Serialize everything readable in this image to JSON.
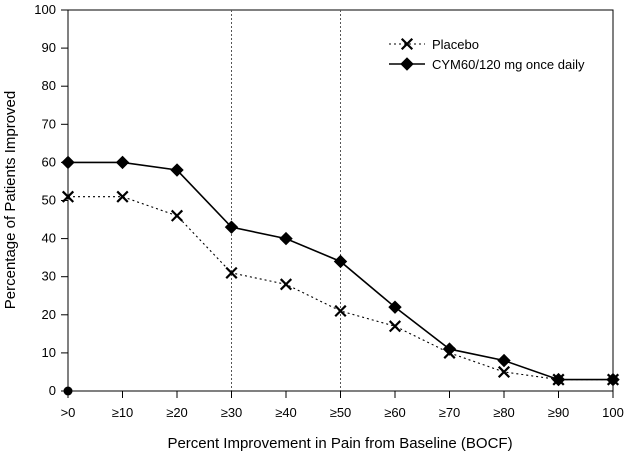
{
  "chart_data": {
    "type": "line",
    "xlabel": "Percent Improvement in Pain from Baseline (BOCF)",
    "ylabel": "Percentage of Patients Improved",
    "categories": [
      ">0",
      "≥10",
      "≥20",
      "≥30",
      "≥40",
      "≥50",
      "≥60",
      "≥70",
      "≥80",
      "≥90",
      "100"
    ],
    "ylim": [
      0,
      100
    ],
    "yticks": [
      0,
      10,
      20,
      30,
      40,
      50,
      60,
      70,
      80,
      90,
      100
    ],
    "reference_lines_at": [
      "≥30",
      "≥50"
    ],
    "legend_position": "top-right",
    "series": [
      {
        "name": "Placebo",
        "marker": "x",
        "line_style": "dotted",
        "color": "#000000",
        "values": [
          51,
          51,
          46,
          31,
          28,
          21,
          17,
          10,
          5,
          3,
          3
        ]
      },
      {
        "name": "CYM60/120 mg once daily",
        "marker": "diamond",
        "line_style": "solid",
        "color": "#000000",
        "values": [
          60,
          60,
          58,
          43,
          40,
          34,
          22,
          11,
          8,
          3,
          3
        ]
      }
    ],
    "extra_points": [
      {
        "x": ">0",
        "y": 0,
        "marker": "circle"
      }
    ]
  }
}
